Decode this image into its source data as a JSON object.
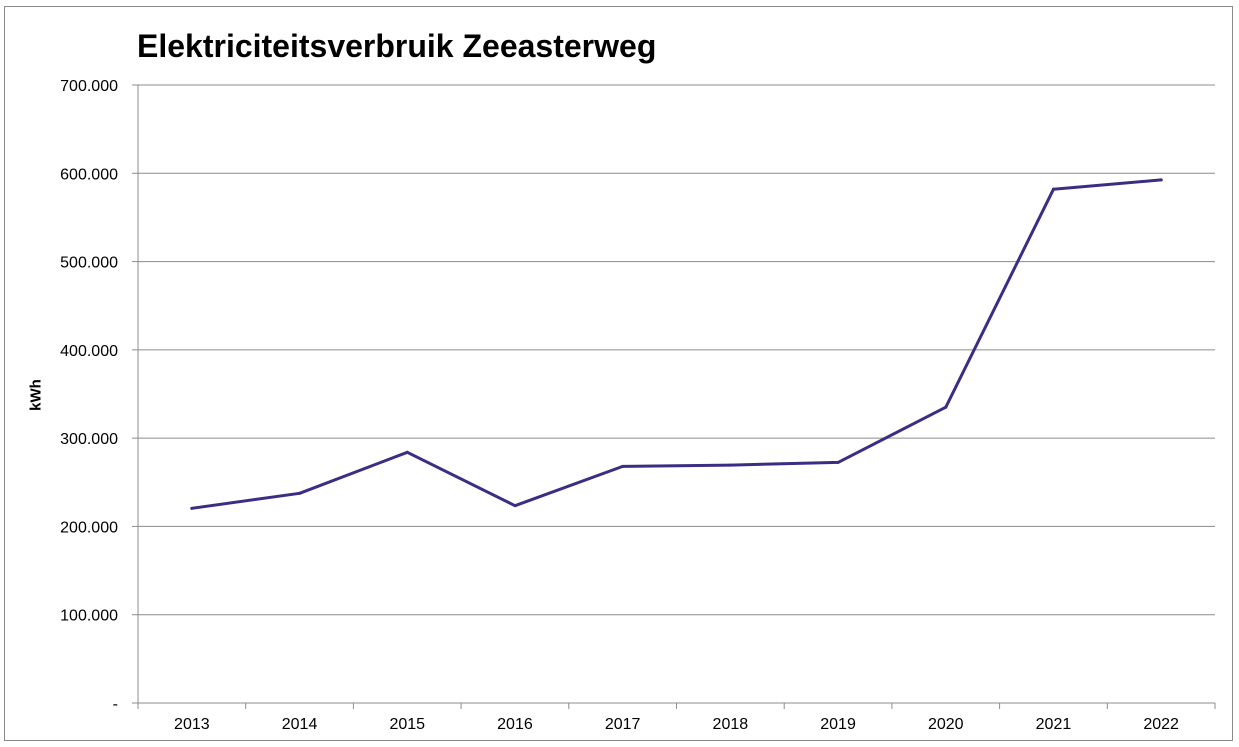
{
  "chart_data": {
    "type": "line",
    "title": "Elektriciteitsverbruik Zeeasterweg",
    "xlabel": "",
    "ylabel": "kWh",
    "categories": [
      "2013",
      "2014",
      "2015",
      "2016",
      "2017",
      "2018",
      "2019",
      "2020",
      "2021",
      "2022"
    ],
    "series": [
      {
        "color": "#3c2d84",
        "values": [
          220500,
          237500,
          284000,
          223500,
          268000,
          269500,
          272500,
          335000,
          582000,
          592500
        ]
      }
    ],
    "ylim": [
      0,
      700000
    ],
    "yticks": [
      0,
      100000,
      200000,
      300000,
      400000,
      500000,
      600000,
      700000
    ],
    "ytick_labels": [
      "-",
      "100.000",
      "200.000",
      "300.000",
      "400.000",
      "500.000",
      "600.000",
      "700.000"
    ],
    "grid": true,
    "legend": "none"
  }
}
